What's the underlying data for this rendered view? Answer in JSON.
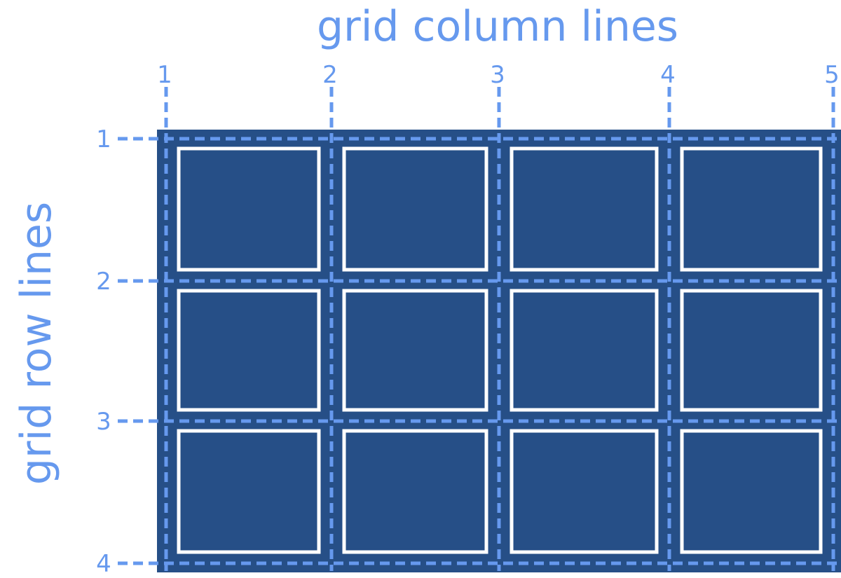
{
  "diagram": {
    "title_top": "grid column lines",
    "title_side": "grid row lines",
    "column_line_labels": [
      "1",
      "2",
      "3",
      "4",
      "5"
    ],
    "row_line_labels": [
      "1",
      "2",
      "3",
      "4"
    ],
    "grid": {
      "columns": 4,
      "rows": 3
    },
    "colors": {
      "container_fill": "#264f87",
      "line_color": "#6699ee",
      "cell_border": "#ffffff",
      "label_color": "#6699ee"
    }
  }
}
